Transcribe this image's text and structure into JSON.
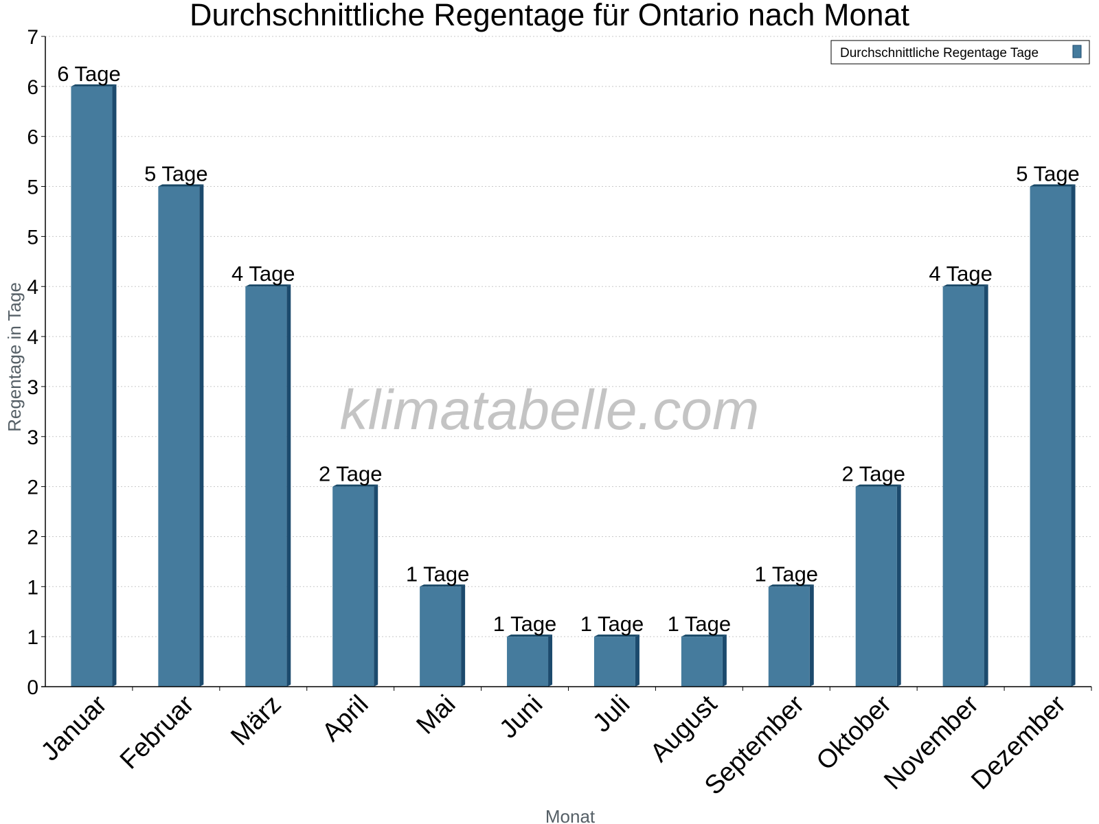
{
  "chart_data": {
    "type": "bar",
    "title": "Durchschnittliche Regentage für Ontario nach Monat",
    "xlabel": "Monat",
    "ylabel": "Regentage in Tage",
    "categories": [
      "Januar",
      "Februar",
      "März",
      "April",
      "Mai",
      "Juni",
      "Juli",
      "August",
      "September",
      "Oktober",
      "November",
      "Dezember"
    ],
    "series": [
      {
        "name": "Durchschnittliche Regentage Tage",
        "values": [
          6,
          5,
          4,
          2,
          1,
          0.5,
          0.5,
          0.5,
          1,
          2,
          4,
          5
        ],
        "data_labels": [
          "6 Tage",
          "5 Tage",
          "4 Tage",
          "2 Tage",
          "1 Tage",
          "1 Tage",
          "1 Tage",
          "1 Tage",
          "1 Tage",
          "2 Tage",
          "4 Tage",
          "5 Tage"
        ]
      }
    ],
    "ylim": [
      0,
      6.5
    ],
    "ytick_labels": [
      "0",
      "1",
      "1",
      "2",
      "2",
      "3",
      "3",
      "4",
      "4",
      "5",
      "5",
      "6",
      "6",
      "7"
    ],
    "grid": true,
    "legend_position": "top-right",
    "colors": {
      "bar": "#457b9d",
      "bar_side": "#1c4a6d",
      "bar_top": "#174766",
      "gridline": "#c8c8c8",
      "watermark": "#c4c4c4"
    }
  },
  "watermark": "klimatabelle.com"
}
